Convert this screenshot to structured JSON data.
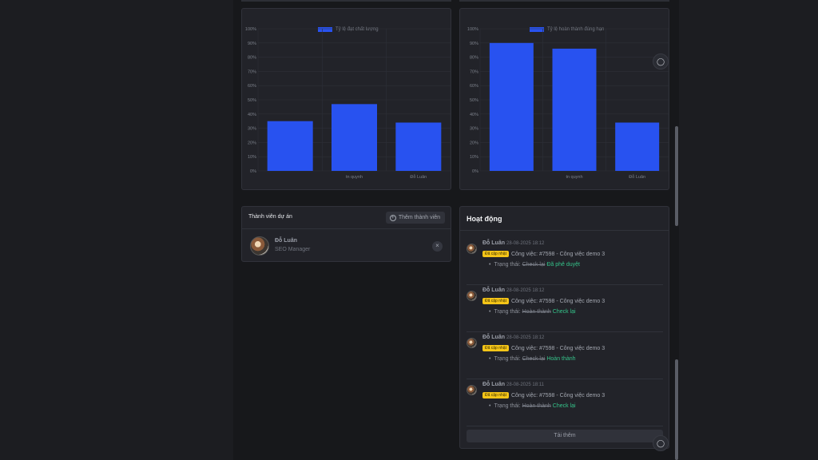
{
  "charts": {
    "quality": {
      "legend": "Tỷ lệ đạt chất lượng",
      "color": "#2852f0"
    },
    "ontime": {
      "legend": "Tỷ lệ hoàn thành đúng hạn",
      "color": "#2852f0"
    }
  },
  "chart_data": [
    {
      "type": "bar",
      "title": "",
      "categories": [
        "",
        "tn quynh",
        "Đỗ Luân"
      ],
      "series": [
        {
          "name": "Tỷ lệ đạt chất lượng",
          "values": [
            35,
            47,
            34
          ]
        }
      ],
      "ylim": [
        0,
        100
      ],
      "yticks": [
        "0%",
        "10%",
        "20%",
        "30%",
        "40%",
        "50%",
        "60%",
        "70%",
        "80%",
        "90%",
        "100%"
      ],
      "grid": true,
      "legend_position": "top-center"
    },
    {
      "type": "bar",
      "title": "",
      "categories": [
        "",
        "tn quynh",
        "Đỗ Luân"
      ],
      "series": [
        {
          "name": "Tỷ lệ hoàn thành đúng hạn",
          "values": [
            90,
            86,
            34
          ]
        }
      ],
      "ylim": [
        0,
        100
      ],
      "yticks": [
        "0%",
        "10%",
        "20%",
        "30%",
        "40%",
        "50%",
        "60%",
        "70%",
        "80%",
        "90%",
        "100%"
      ],
      "grid": true,
      "legend_position": "top-center"
    }
  ],
  "members": {
    "title": "Thành viên dự án",
    "add_label": "Thêm thành viên",
    "list": [
      {
        "name": "Đỗ Luân",
        "role": "SEO Manager",
        "remove": "×"
      }
    ]
  },
  "activity": {
    "title": "Hoạt động",
    "load_more": "Tải thêm",
    "items": [
      {
        "name": "Đỗ Luân",
        "time": "28-08-2025 18:12",
        "badge": "Đã cập nhật",
        "task": "Công việc: #7598 - Công việc demo 3",
        "status_label": "Trạng thái:",
        "old": "Check lại",
        "new": "Đã phê duyệt"
      },
      {
        "name": "Đỗ Luân",
        "time": "28-08-2025 18:12",
        "badge": "Đã cập nhật",
        "task": "Công việc: #7598 - Công việc demo 3",
        "status_label": "Trạng thái:",
        "old": "Hoàn thành",
        "new": "Check lại"
      },
      {
        "name": "Đỗ Luân",
        "time": "28-08-2025 18:12",
        "badge": "Đã cập nhật",
        "task": "Công việc: #7598 - Công việc demo 3",
        "status_label": "Trạng thái:",
        "old": "Check lại",
        "new": "Hoàn thành"
      },
      {
        "name": "Đỗ Luân",
        "time": "28-08-2025 18:11",
        "badge": "Đã cập nhật",
        "task": "Công việc: #7598 - Công việc demo 3",
        "status_label": "Trạng thái:",
        "old": "Hoàn thành",
        "new": "Check lại"
      }
    ]
  },
  "icons": {
    "chat": "chat-bubble-icon",
    "add": "plus-circle-icon",
    "remove": "close-icon"
  }
}
